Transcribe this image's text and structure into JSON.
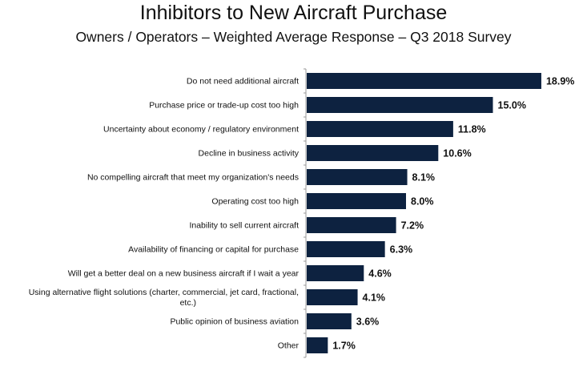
{
  "chart_data": {
    "type": "bar",
    "orientation": "horizontal",
    "title": "Inhibitors to New Aircraft Purchase",
    "subtitle": "Owners / Operators – Weighted Average Response – Q3 2018 Survey",
    "categories": [
      "Do not need additional aircraft",
      "Purchase price or trade-up cost too high",
      "Uncertainty about economy / regulatory environment",
      "Decline in business activity",
      "No compelling aircraft that meet my organization's needs",
      "Operating cost too high",
      "Inability to sell current aircraft",
      "Availability of financing or capital for purchase",
      "Will get a better deal on a new business aircraft if I wait a year",
      "Using alternative flight solutions (charter, commercial, jet card, fractional, etc.)",
      "Public opinion of business aviation",
      "Other"
    ],
    "values": [
      18.9,
      15.0,
      11.8,
      10.6,
      8.1,
      8.0,
      7.2,
      6.3,
      4.6,
      4.1,
      3.6,
      1.7
    ],
    "data_labels": [
      "18.9%",
      "15.0%",
      "11.8%",
      "10.6%",
      "8.1%",
      "8.0%",
      "7.2%",
      "6.3%",
      "4.6%",
      "4.1%",
      "3.6%",
      "1.7%"
    ],
    "xlim": [
      0,
      20
    ],
    "grid": false,
    "bar_color": "#0d2240"
  }
}
